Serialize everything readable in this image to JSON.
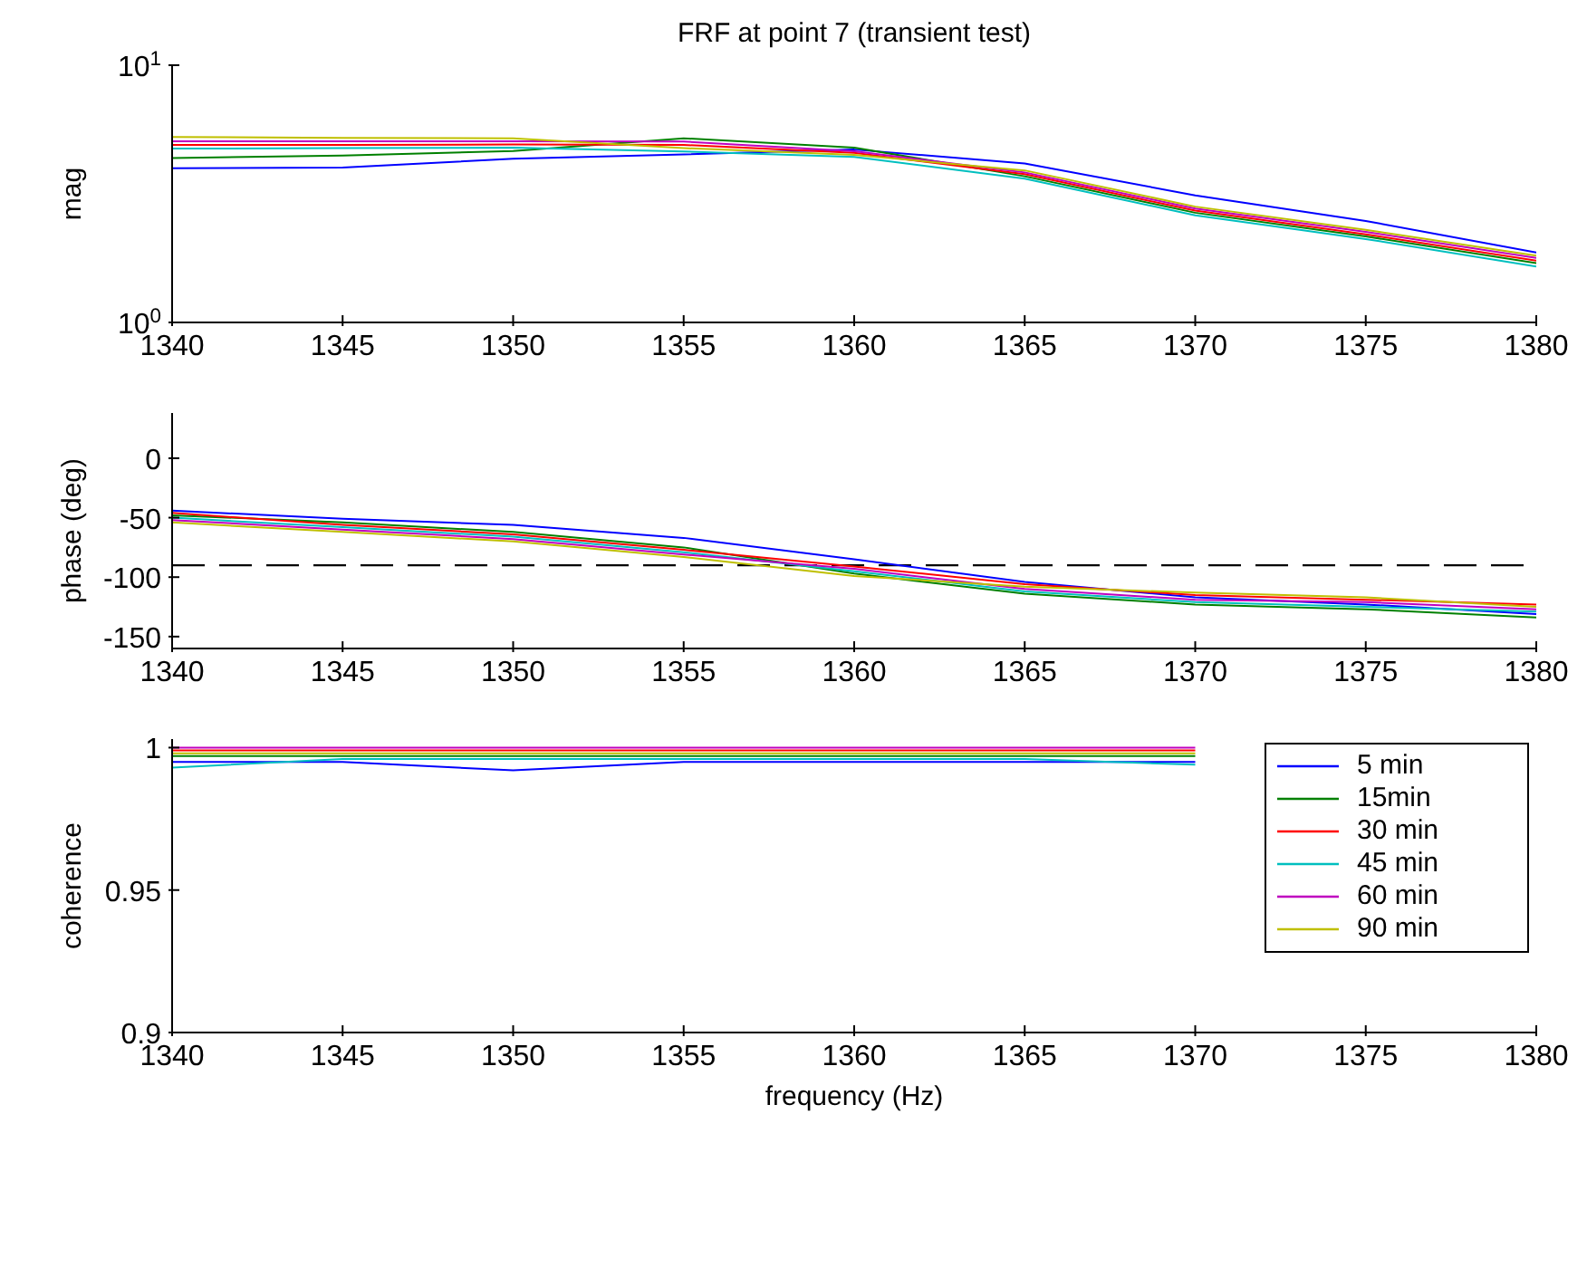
{
  "chart_data": [
    {
      "type": "line",
      "title": "FRF at point 7 (transient test)",
      "ylabel": "mag",
      "x": [
        1340,
        1345,
        1350,
        1355,
        1360,
        1365,
        1370,
        1375,
        1380
      ],
      "xlim": [
        1340,
        1380
      ],
      "xticks": [
        1340,
        1345,
        1350,
        1355,
        1360,
        1365,
        1370,
        1375,
        1380
      ],
      "log": "y",
      "ylim": [
        1,
        10
      ],
      "yticks": [
        {
          "value": 1,
          "label": "10$^{0}$"
        },
        {
          "value": 10,
          "label": "10$^{1}$"
        }
      ],
      "grid": false,
      "legend": false,
      "series": [
        {
          "color": "#0000ff",
          "values": [
            3.98,
            4.0,
            4.33,
            4.5,
            4.7,
            4.15,
            3.12,
            2.48,
            1.87
          ]
        },
        {
          "color": "#008000",
          "values": [
            4.36,
            4.45,
            4.64,
            5.2,
            4.78,
            3.7,
            2.67,
            2.16,
            1.7
          ]
        },
        {
          "color": "#ff0000",
          "values": [
            4.9,
            4.9,
            4.92,
            4.9,
            4.56,
            3.77,
            2.72,
            2.2,
            1.74
          ]
        },
        {
          "color": "#00bfbf",
          "values": [
            4.74,
            4.76,
            4.78,
            4.62,
            4.4,
            3.62,
            2.61,
            2.11,
            1.65
          ]
        },
        {
          "color": "#bf00bf",
          "values": [
            5.06,
            5.06,
            5.06,
            5.05,
            4.63,
            3.83,
            2.77,
            2.25,
            1.78
          ]
        },
        {
          "color": "#bfbf00",
          "values": [
            5.26,
            5.22,
            5.2,
            4.76,
            4.48,
            3.9,
            2.82,
            2.29,
            1.82
          ]
        }
      ]
    },
    {
      "type": "line",
      "ylabel": "phase (deg)",
      "x": [
        1340,
        1345,
        1350,
        1355,
        1360,
        1365,
        1370,
        1375,
        1380
      ],
      "xlim": [
        1340,
        1380
      ],
      "xticks": [
        1340,
        1345,
        1350,
        1355,
        1360,
        1365,
        1370,
        1375,
        1380
      ],
      "ylim": [
        -160,
        38
      ],
      "yticks": [
        -150,
        -100,
        -50,
        0
      ],
      "grid": false,
      "legend": false,
      "ref_lines": [
        {
          "axis": "y",
          "value": -90,
          "color": "#000000",
          "line_style": "dashed"
        }
      ],
      "series": [
        {
          "color": "#0000ff",
          "values": [
            -44,
            -51,
            -56,
            -67,
            -85,
            -104,
            -117,
            -123,
            -131
          ]
        },
        {
          "color": "#008000",
          "values": [
            -48,
            -54,
            -62,
            -75,
            -97,
            -114,
            -123,
            -127,
            -134
          ]
        },
        {
          "color": "#ff0000",
          "values": [
            -46,
            -56,
            -64,
            -77,
            -91,
            -106,
            -115,
            -119,
            -123
          ]
        },
        {
          "color": "#00bfbf",
          "values": [
            -50,
            -58,
            -66,
            -79,
            -95,
            -112,
            -121,
            -125,
            -129
          ]
        },
        {
          "color": "#bf00bf",
          "values": [
            -52,
            -60,
            -68,
            -81,
            -93,
            -110,
            -119,
            -121,
            -127
          ]
        },
        {
          "color": "#bfbf00",
          "values": [
            -54,
            -62,
            -70,
            -83,
            -99,
            -108,
            -113,
            -117,
            -125
          ]
        }
      ]
    },
    {
      "type": "line",
      "xlabel": "frequency (Hz)",
      "ylabel": "coherence",
      "x": [
        1340,
        1345,
        1350,
        1355,
        1360,
        1365,
        1370
      ],
      "xlim": [
        1340,
        1380
      ],
      "xticks": [
        1340,
        1345,
        1350,
        1355,
        1360,
        1365,
        1370,
        1375,
        1380
      ],
      "ylim": [
        0.9,
        1.003
      ],
      "yticks": [
        0.9,
        0.95,
        1
      ],
      "grid": false,
      "legend": "top right",
      "series": [
        {
          "name": "5 min",
          "color": "#0000ff",
          "values": [
            0.995,
            0.995,
            0.992,
            0.995,
            0.995,
            0.995,
            0.995
          ]
        },
        {
          "name": "15min",
          "color": "#008000",
          "values": [
            0.997,
            0.997,
            0.997,
            0.997,
            0.997,
            0.997,
            0.997
          ]
        },
        {
          "name": "30 min",
          "color": "#ff0000",
          "values": [
            0.999,
            0.999,
            0.999,
            0.999,
            0.999,
            0.999,
            0.999
          ]
        },
        {
          "name": "45 min",
          "color": "#00bfbf",
          "values": [
            0.993,
            0.996,
            0.996,
            0.996,
            0.996,
            0.996,
            0.994
          ]
        },
        {
          "name": "60 min",
          "color": "#bf00bf",
          "values": [
            1,
            1,
            1,
            1,
            1,
            1,
            1
          ]
        },
        {
          "name": "90 min",
          "color": "#bfbf00",
          "values": [
            0.998,
            0.998,
            0.998,
            0.998,
            0.998,
            0.998,
            0.998
          ]
        }
      ]
    }
  ]
}
